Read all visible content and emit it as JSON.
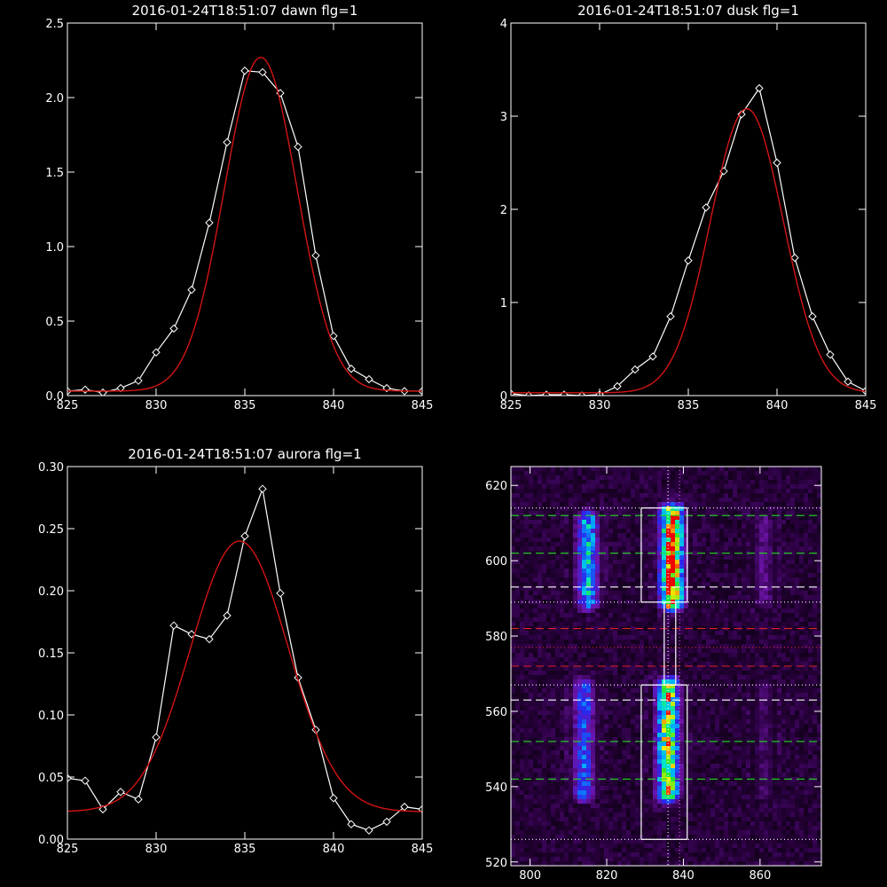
{
  "colors": {
    "background": "#000000",
    "axes": "#ffffff",
    "data_line": "#ffffff",
    "fit_line": "#d41414"
  },
  "chart_data": [
    {
      "type": "line",
      "title": "2016-01-24T18:51:07 dawn flg=1",
      "xlim": [
        825,
        845
      ],
      "ylim": [
        0,
        2.5
      ],
      "xticks": [
        "825",
        "830",
        "835",
        "840",
        "845"
      ],
      "yticks": [
        "0.0",
        "0.5",
        "1.0",
        "1.5",
        "2.0",
        "2.5"
      ],
      "series": [
        {
          "marker": "diamond",
          "color": "#ffffff",
          "x": [
            825,
            826,
            827,
            828,
            829,
            830,
            831,
            832,
            833,
            834,
            835,
            836,
            837,
            838,
            839,
            840,
            841,
            842,
            843,
            844,
            845
          ],
          "y": [
            0.03,
            0.04,
            0.02,
            0.05,
            0.1,
            0.29,
            0.45,
            0.71,
            1.16,
            1.7,
            2.18,
            2.17,
            2.03,
            1.67,
            0.94,
            0.4,
            0.18,
            0.11,
            0.05,
            0.03,
            0.03
          ]
        },
        {
          "curve": "gaussian",
          "color": "#d41414",
          "center": 835.9,
          "sigma": 2.05,
          "amplitude": 2.24,
          "baseline": 0.03
        }
      ]
    },
    {
      "type": "line",
      "title": "2016-01-24T18:51:07 dusk flg=1",
      "xlim": [
        825,
        845
      ],
      "ylim": [
        0,
        4
      ],
      "xticks": [
        "825",
        "830",
        "835",
        "840",
        "845"
      ],
      "yticks": [
        "0",
        "1",
        "2",
        "3",
        "4"
      ],
      "series": [
        {
          "marker": "diamond",
          "color": "#ffffff",
          "x": [
            825,
            826,
            827,
            828,
            829,
            830,
            831,
            832,
            833,
            834,
            835,
            836,
            837,
            838,
            839,
            840,
            841,
            842,
            843,
            844,
            845
          ],
          "y": [
            0.02,
            0.0,
            0.01,
            0.01,
            0.0,
            0.01,
            0.1,
            0.28,
            0.42,
            0.85,
            1.45,
            2.02,
            2.41,
            3.02,
            3.3,
            2.5,
            1.48,
            0.85,
            0.44,
            0.15,
            0.05
          ]
        },
        {
          "curve": "gaussian",
          "color": "#d41414",
          "center": 838.3,
          "sigma": 2.05,
          "amplitude": 3.05,
          "baseline": 0.03
        }
      ]
    },
    {
      "type": "line",
      "title": "2016-01-24T18:51:07 aurora flg=1",
      "xlim": [
        825,
        845
      ],
      "ylim": [
        0,
        0.3
      ],
      "xticks": [
        "825",
        "830",
        "835",
        "840",
        "845"
      ],
      "yticks": [
        "0.00",
        "0.05",
        "0.10",
        "0.15",
        "0.20",
        "0.25",
        "0.30"
      ],
      "series": [
        {
          "marker": "diamond",
          "color": "#ffffff",
          "x": [
            825,
            826,
            827,
            828,
            829,
            830,
            831,
            832,
            833,
            834,
            835,
            836,
            837,
            838,
            839,
            840,
            841,
            842,
            843,
            844,
            845
          ],
          "y": [
            0.049,
            0.047,
            0.024,
            0.038,
            0.032,
            0.082,
            0.172,
            0.165,
            0.161,
            0.18,
            0.244,
            0.282,
            0.198,
            0.13,
            0.088,
            0.033,
            0.012,
            0.007,
            0.014,
            0.026,
            0.024
          ]
        },
        {
          "curve": "gaussian",
          "color": "#d41414",
          "center": 834.7,
          "sigma": 2.75,
          "amplitude": 0.218,
          "baseline": 0.022
        }
      ]
    },
    {
      "type": "heatmap",
      "xlim": [
        795,
        876
      ],
      "ylim": [
        519,
        625
      ],
      "xticks": [
        "800",
        "820",
        "840",
        "860"
      ],
      "yticks": [
        "520",
        "540",
        "560",
        "580",
        "600",
        "620"
      ],
      "colormap": "rainbow",
      "blobs": [
        {
          "x": 815,
          "y_min": 589,
          "y_max": 611,
          "intensity": 0.55
        },
        {
          "x": 837,
          "y_min": 589,
          "y_max": 613,
          "intensity": 1.0
        },
        {
          "x": 861,
          "y_min": 589,
          "y_max": 611,
          "intensity": 0.2
        },
        {
          "x": 814,
          "y_min": 538,
          "y_max": 567,
          "intensity": 0.42
        },
        {
          "x": 836,
          "y_min": 538,
          "y_max": 567,
          "intensity": 0.82
        },
        {
          "x": 861,
          "y_min": 538,
          "y_max": 567,
          "intensity": 0.15
        }
      ],
      "hlines": [
        {
          "y": 612,
          "color": "#22dd22",
          "style": "dashed"
        },
        {
          "y": 602,
          "color": "#22dd22",
          "style": "dashed"
        },
        {
          "y": 593,
          "color": "#ffffff",
          "style": "dashed"
        },
        {
          "y": 582,
          "color": "#dd2222",
          "style": "dashed"
        },
        {
          "y": 572,
          "color": "#dd2222",
          "style": "dashed"
        },
        {
          "y": 563,
          "color": "#ffffff",
          "style": "dashed"
        },
        {
          "y": 552,
          "color": "#22dd22",
          "style": "dashed"
        },
        {
          "y": 542,
          "color": "#22dd22",
          "style": "dashed"
        },
        {
          "y": 614,
          "color": "#ffffff",
          "style": "dotted"
        },
        {
          "y": 589,
          "color": "#ffffff",
          "style": "dotted"
        },
        {
          "y": 567,
          "color": "#ffffff",
          "style": "dotted"
        },
        {
          "y": 526,
          "color": "#ffffff",
          "style": "dotted"
        },
        {
          "y": 577,
          "color": "#dd2222",
          "style": "dotted"
        }
      ],
      "vlines": [
        {
          "x": 836,
          "color": "#ffffff",
          "style": "dotted"
        },
        {
          "x": 839,
          "color": "#dd66dd",
          "style": "dotted"
        }
      ],
      "boxes": [
        {
          "x0": 829,
          "x1": 841,
          "y0": 589,
          "y1": 614
        },
        {
          "x0": 829,
          "x1": 841,
          "y0": 526,
          "y1": 567
        },
        {
          "x0": 835,
          "x1": 838,
          "y0": 567,
          "y1": 589
        }
      ]
    }
  ]
}
